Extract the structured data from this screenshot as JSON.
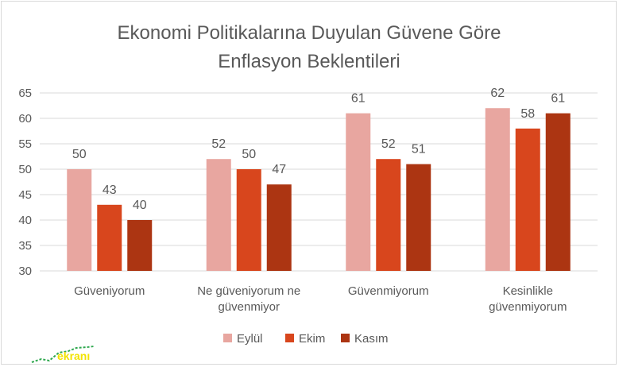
{
  "chart_data": {
    "type": "bar",
    "title": [
      "Ekonomi Politikalarına Duyulan Güvene Göre",
      "Enflasyon Beklentileri"
    ],
    "categories": [
      [
        "Güveniyorum"
      ],
      [
        "Ne güveniyorum ne",
        "güvenmiyor"
      ],
      [
        "Güvenmiyorum"
      ],
      [
        "Kesinlikle",
        "güvenmiyorum"
      ]
    ],
    "series": [
      {
        "name": "Eylül",
        "values": [
          50,
          52,
          61,
          62
        ],
        "color": "#e8a6a0"
      },
      {
        "name": "Ekim",
        "values": [
          43,
          50,
          52,
          58
        ],
        "color": "#d8461d"
      },
      {
        "name": "Kasım",
        "values": [
          40,
          47,
          51,
          61
        ],
        "color": "#ac3512"
      }
    ],
    "yticks": [
      "30",
      "35",
      "40",
      "45",
      "50",
      "55",
      "60",
      "65"
    ],
    "ylim": [
      30,
      65
    ],
    "grid": true,
    "legend": "bottom",
    "data_labels": true
  },
  "watermark": {
    "text": "ekranı",
    "color": "#f2e300",
    "icon": "trend-line-icon"
  }
}
